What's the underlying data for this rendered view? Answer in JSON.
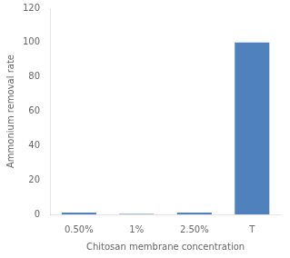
{
  "chart_data": {
    "type": "bar",
    "categories": [
      "0.50%",
      "1%",
      "2.50%",
      "T"
    ],
    "values": [
      1.0,
      0.2,
      1.0,
      100.0
    ],
    "color": "#4f81bd",
    "xlabel": "Chitosan membrane concentration",
    "ylabel": "Ammonium removal rate",
    "ylim": [
      0,
      120
    ],
    "yticks": [
      0,
      20,
      40,
      60,
      80,
      100,
      120
    ],
    "grid": false
  }
}
